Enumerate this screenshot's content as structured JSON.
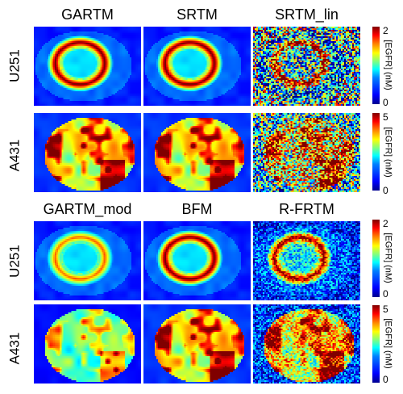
{
  "top_block": {
    "column_titles": [
      "GARTM",
      "SRTM",
      "SRTM_lin"
    ],
    "rows": [
      {
        "label": "U251",
        "colorbar": {
          "max_tick": "2",
          "min_tick": "0",
          "label": "[EGFR] (nM)"
        }
      },
      {
        "label": "A431",
        "colorbar": {
          "max_tick": "5",
          "min_tick": "0",
          "label": "[EGFR] (nM)"
        }
      }
    ]
  },
  "bottom_block": {
    "column_titles": [
      "GARTM_mod",
      "BFM",
      "R-FRTM"
    ],
    "rows": [
      {
        "label": "U251",
        "colorbar": {
          "max_tick": "2",
          "min_tick": "0",
          "label": "[EGFR] (nM)"
        }
      },
      {
        "label": "A431",
        "colorbar": {
          "max_tick": "5",
          "min_tick": "0",
          "label": "[EGFR] (nM)"
        }
      }
    ]
  },
  "colormap": "jet"
}
